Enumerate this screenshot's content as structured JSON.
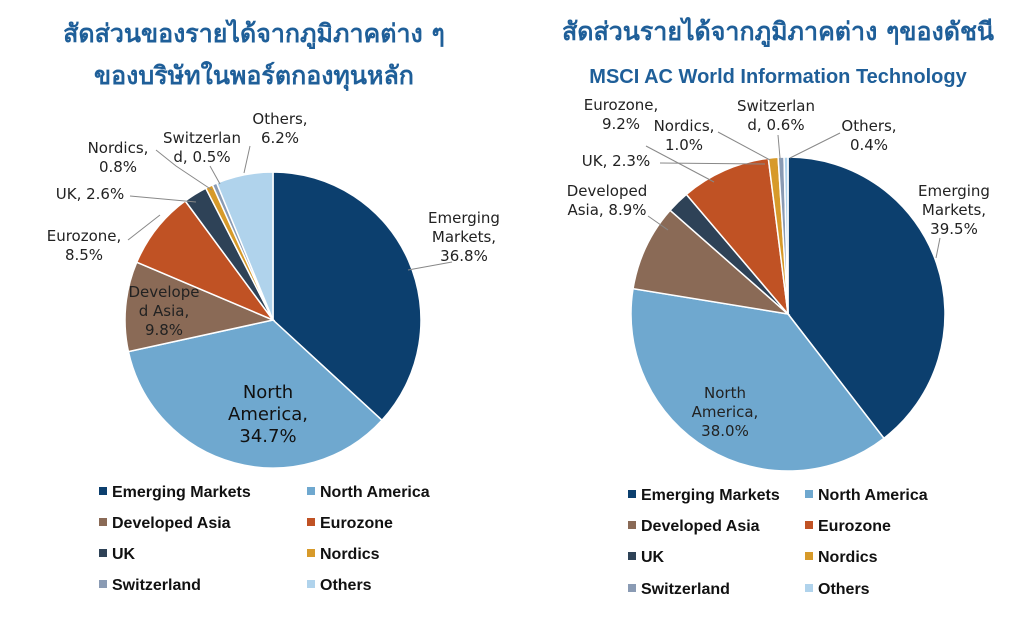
{
  "chart_data": [
    {
      "type": "pie",
      "title": "สัดส่วนของรายได้จากภูมิภาคต่าง ๆ",
      "title_line2": "ของบริษัทในพอร์ตกองทุนหลัก",
      "categories": [
        "Emerging Markets",
        "North America",
        "Developed Asia",
        "Eurozone",
        "UK",
        "Nordics",
        "Switzerland",
        "Others"
      ],
      "values": [
        36.8,
        34.7,
        9.8,
        8.5,
        2.6,
        0.8,
        0.5,
        6.2
      ],
      "unit": "%",
      "data_labels": [
        [
          "Emerging",
          "Markets,",
          "36.8%"
        ],
        [
          "North",
          "America,",
          "34.7%"
        ],
        [
          "Develope",
          "d Asia,",
          "9.8%"
        ],
        [
          "Eurozone,",
          "8.5%"
        ],
        [
          "UK, 2.6%"
        ],
        [
          "Nordics,",
          "0.8%"
        ],
        [
          "Switzerlan",
          "d, 0.5%"
        ],
        [
          "Others,",
          "6.2%"
        ]
      ],
      "legend": [
        "Emerging Markets",
        "North America",
        "Developed Asia",
        "Eurozone",
        "UK",
        "Nordics",
        "Switzerland",
        "Others"
      ],
      "legend_position": "bottom",
      "start_angle_deg": 0,
      "direction": "clockwise"
    },
    {
      "type": "pie",
      "title": "สัดส่วนรายได้จากภูมิภาคต่าง ๆของดัชนี",
      "subtitle": "MSCI AC World Information Technology",
      "categories": [
        "Emerging Markets",
        "North America",
        "Developed Asia",
        "UK",
        "Eurozone",
        "Nordics",
        "Switzerland",
        "Others"
      ],
      "values": [
        39.5,
        38.0,
        8.9,
        2.3,
        9.2,
        1.0,
        0.6,
        0.4
      ],
      "unit": "%",
      "data_labels": [
        [
          "Emerging",
          "Markets,",
          "39.5%"
        ],
        [
          "North",
          "America,",
          "38.0%"
        ],
        [
          "Developed",
          "Asia, 8.9%"
        ],
        [
          "UK, 2.3%"
        ],
        [
          "Eurozone,",
          "9.2%"
        ],
        [
          "Nordics,",
          "1.0%"
        ],
        [
          "Switzerlan",
          "d, 0.6%"
        ],
        [
          "Others,",
          "0.4%"
        ]
      ],
      "legend": [
        "Emerging Markets",
        "North America",
        "Developed Asia",
        "Eurozone",
        "UK",
        "Nordics",
        "Switzerland",
        "Others"
      ],
      "legend_position": "bottom",
      "start_angle_deg": 0,
      "direction": "clockwise"
    }
  ],
  "colors": {
    "Emerging Markets": "#0c3f6e",
    "North America": "#6fa8cf",
    "Developed Asia": "#8a6a56",
    "Eurozone": "#c05224",
    "UK": "#2e4257",
    "Nordics": "#d79a2a",
    "Switzerland": "#8a9bb4",
    "Others": "#b0d3ec"
  }
}
